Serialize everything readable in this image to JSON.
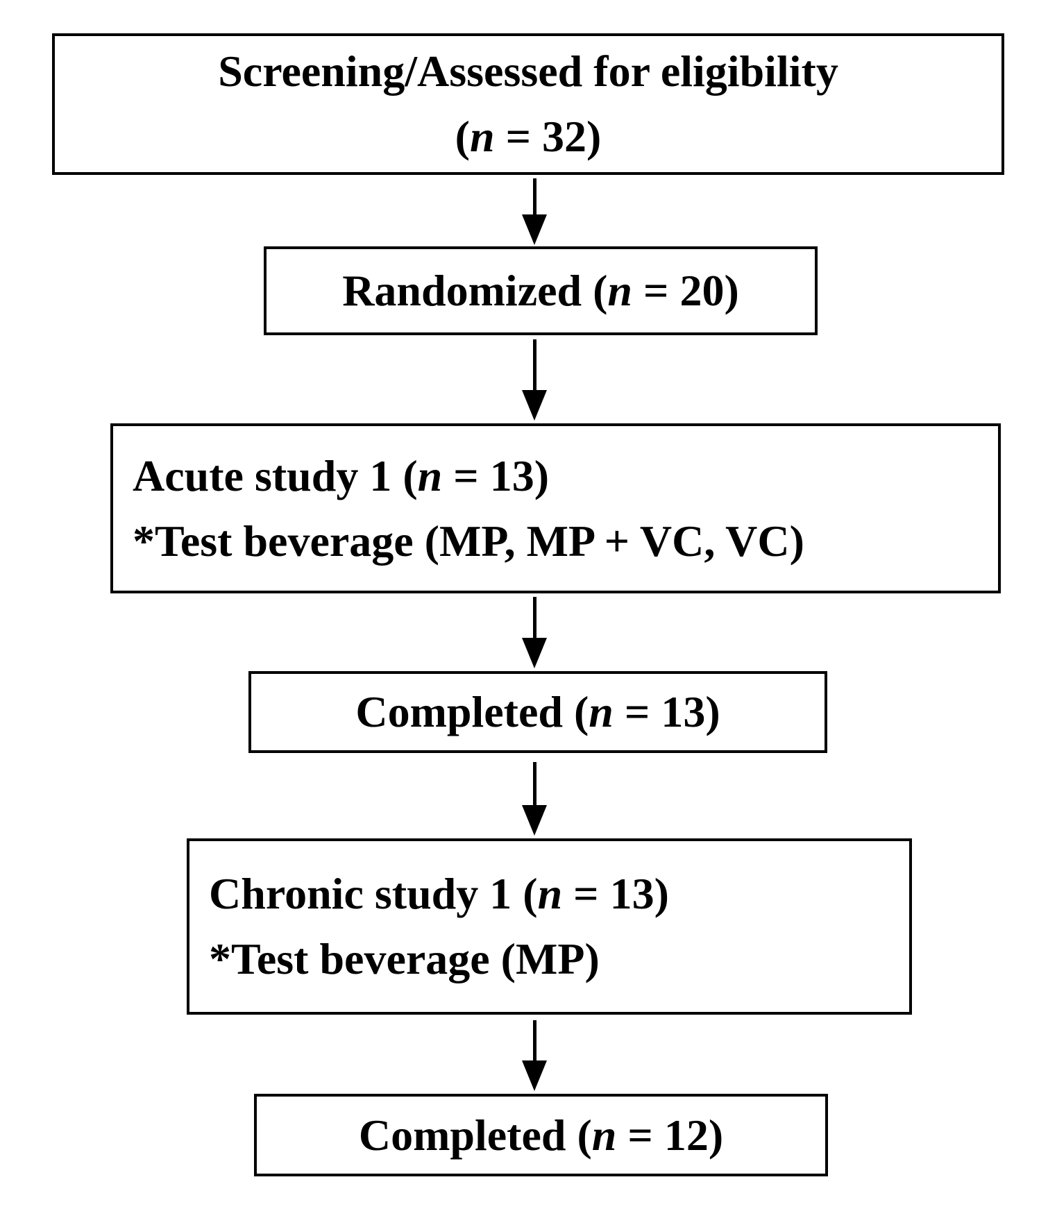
{
  "figure": {
    "type": "flowchart",
    "background_color": "#ffffff",
    "box_border_color": "#000000",
    "text_color": "#000000"
  },
  "boxes": [
    {
      "id": "screening",
      "align": "center",
      "lines": [
        {
          "segments": [
            {
              "text": "Screening/Assessed for eligibility",
              "italic": false
            }
          ]
        },
        {
          "segments": [
            {
              "text": "(",
              "italic": false
            },
            {
              "text": "n",
              "italic": true
            },
            {
              "text": " = 32)",
              "italic": false
            }
          ]
        }
      ]
    },
    {
      "id": "randomized",
      "align": "center",
      "lines": [
        {
          "segments": [
            {
              "text": "Randomized (",
              "italic": false
            },
            {
              "text": "n",
              "italic": true
            },
            {
              "text": " = 20)",
              "italic": false
            }
          ]
        }
      ]
    },
    {
      "id": "acute-study",
      "align": "left",
      "lines": [
        {
          "segments": [
            {
              "text": "Acute study 1 (",
              "italic": false
            },
            {
              "text": "n",
              "italic": true
            },
            {
              "text": " = 13)",
              "italic": false
            }
          ]
        },
        {
          "segments": [
            {
              "text": "*Test beverage (MP, MP + VC, VC)",
              "italic": false
            }
          ]
        }
      ]
    },
    {
      "id": "completed-acute",
      "align": "center",
      "lines": [
        {
          "segments": [
            {
              "text": "Completed (",
              "italic": false
            },
            {
              "text": "n",
              "italic": true
            },
            {
              "text": " = 13)",
              "italic": false
            }
          ]
        }
      ]
    },
    {
      "id": "chronic-study",
      "align": "left",
      "lines": [
        {
          "segments": [
            {
              "text": "Chronic study 1 (",
              "italic": false
            },
            {
              "text": "n",
              "italic": true
            },
            {
              "text": " = 13)",
              "italic": false
            }
          ]
        },
        {
          "segments": [
            {
              "text": "*Test beverage (MP)",
              "italic": false
            }
          ]
        }
      ]
    },
    {
      "id": "completed-chronic",
      "align": "center",
      "lines": [
        {
          "segments": [
            {
              "text": "Completed (",
              "italic": false
            },
            {
              "text": "n",
              "italic": true
            },
            {
              "text": " = 12)",
              "italic": false
            }
          ]
        }
      ]
    }
  ]
}
